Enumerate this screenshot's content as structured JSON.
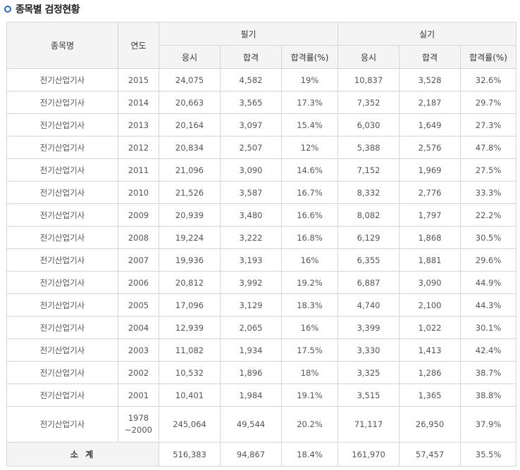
{
  "page": {
    "title": "종목별 검정현황"
  },
  "table": {
    "headers": {
      "name": "종목명",
      "year": "연도",
      "written": "필기",
      "practical": "실기",
      "applicants": "응시",
      "passed": "합격",
      "rate": "합격률(%)"
    },
    "rows": [
      {
        "name": "전기산업기사",
        "year": "2015",
        "w_apply": "24,075",
        "w_pass": "4,582",
        "w_rate": "19%",
        "p_apply": "10,837",
        "p_pass": "3,528",
        "p_rate": "32.6%"
      },
      {
        "name": "전기산업기사",
        "year": "2014",
        "w_apply": "20,663",
        "w_pass": "3,565",
        "w_rate": "17.3%",
        "p_apply": "7,352",
        "p_pass": "2,187",
        "p_rate": "29.7%"
      },
      {
        "name": "전기산업기사",
        "year": "2013",
        "w_apply": "20,164",
        "w_pass": "3,097",
        "w_rate": "15.4%",
        "p_apply": "6,030",
        "p_pass": "1,649",
        "p_rate": "27.3%"
      },
      {
        "name": "전기산업기사",
        "year": "2012",
        "w_apply": "20,834",
        "w_pass": "2,507",
        "w_rate": "12%",
        "p_apply": "5,388",
        "p_pass": "2,576",
        "p_rate": "47.8%"
      },
      {
        "name": "전기산업기사",
        "year": "2011",
        "w_apply": "21,096",
        "w_pass": "3,090",
        "w_rate": "14.6%",
        "p_apply": "7,152",
        "p_pass": "1,969",
        "p_rate": "27.5%"
      },
      {
        "name": "전기산업기사",
        "year": "2010",
        "w_apply": "21,526",
        "w_pass": "3,587",
        "w_rate": "16.7%",
        "p_apply": "8,332",
        "p_pass": "2,776",
        "p_rate": "33.3%"
      },
      {
        "name": "전기산업기사",
        "year": "2009",
        "w_apply": "20,939",
        "w_pass": "3,480",
        "w_rate": "16.6%",
        "p_apply": "8,082",
        "p_pass": "1,797",
        "p_rate": "22.2%"
      },
      {
        "name": "전기산업기사",
        "year": "2008",
        "w_apply": "19,224",
        "w_pass": "3,222",
        "w_rate": "16.8%",
        "p_apply": "6,129",
        "p_pass": "1,868",
        "p_rate": "30.5%"
      },
      {
        "name": "전기산업기사",
        "year": "2007",
        "w_apply": "19,936",
        "w_pass": "3,193",
        "w_rate": "16%",
        "p_apply": "6,355",
        "p_pass": "1,881",
        "p_rate": "29.6%"
      },
      {
        "name": "전기산업기사",
        "year": "2006",
        "w_apply": "20,812",
        "w_pass": "3,992",
        "w_rate": "19.2%",
        "p_apply": "6,887",
        "p_pass": "3,090",
        "p_rate": "44.9%"
      },
      {
        "name": "전기산업기사",
        "year": "2005",
        "w_apply": "17,096",
        "w_pass": "3,129",
        "w_rate": "18.3%",
        "p_apply": "4,740",
        "p_pass": "2,100",
        "p_rate": "44.3%"
      },
      {
        "name": "전기산업기사",
        "year": "2004",
        "w_apply": "12,939",
        "w_pass": "2,065",
        "w_rate": "16%",
        "p_apply": "3,399",
        "p_pass": "1,022",
        "p_rate": "30.1%"
      },
      {
        "name": "전기산업기사",
        "year": "2003",
        "w_apply": "11,082",
        "w_pass": "1,934",
        "w_rate": "17.5%",
        "p_apply": "3,330",
        "p_pass": "1,413",
        "p_rate": "42.4%"
      },
      {
        "name": "전기산업기사",
        "year": "2002",
        "w_apply": "10,532",
        "w_pass": "1,896",
        "w_rate": "18%",
        "p_apply": "3,325",
        "p_pass": "1,286",
        "p_rate": "38.7%"
      },
      {
        "name": "전기산업기사",
        "year": "2001",
        "w_apply": "10,401",
        "w_pass": "1,984",
        "w_rate": "19.1%",
        "p_apply": "3,515",
        "p_pass": "1,365",
        "p_rate": "38.8%"
      },
      {
        "name": "전기산업기사",
        "year": "1978",
        "year_line2": "~2000",
        "w_apply": "245,064",
        "w_pass": "49,544",
        "w_rate": "20.2%",
        "p_apply": "71,117",
        "p_pass": "26,950",
        "p_rate": "37.9%"
      }
    ],
    "total": {
      "label": "소 계",
      "w_apply": "516,383",
      "w_pass": "94,867",
      "w_rate": "18.4%",
      "p_apply": "161,970",
      "p_pass": "57,457",
      "p_rate": "35.5%"
    }
  }
}
